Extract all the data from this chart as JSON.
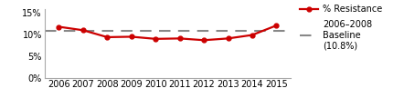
{
  "years": [
    2006,
    2007,
    2008,
    2009,
    2010,
    2011,
    2012,
    2013,
    2014,
    2015
  ],
  "resistance": [
    11.8,
    11.0,
    9.4,
    9.5,
    9.0,
    9.1,
    8.7,
    9.1,
    9.9,
    12.1
  ],
  "baseline": 10.8,
  "line_color": "#cc0000",
  "baseline_color": "#888888",
  "marker": "o",
  "marker_size": 3.5,
  "line_width": 1.6,
  "ylim": [
    0,
    16
  ],
  "yticks": [
    0,
    5,
    10,
    15
  ],
  "ytick_labels": [
    "0%",
    "5%",
    "10%",
    "15%"
  ],
  "legend_resistance": "% Resistance",
  "legend_baseline": "2006–2008\nBaseline\n(10.8%)",
  "background_color": "#ffffff",
  "tick_fontsize": 7,
  "legend_fontsize": 7
}
